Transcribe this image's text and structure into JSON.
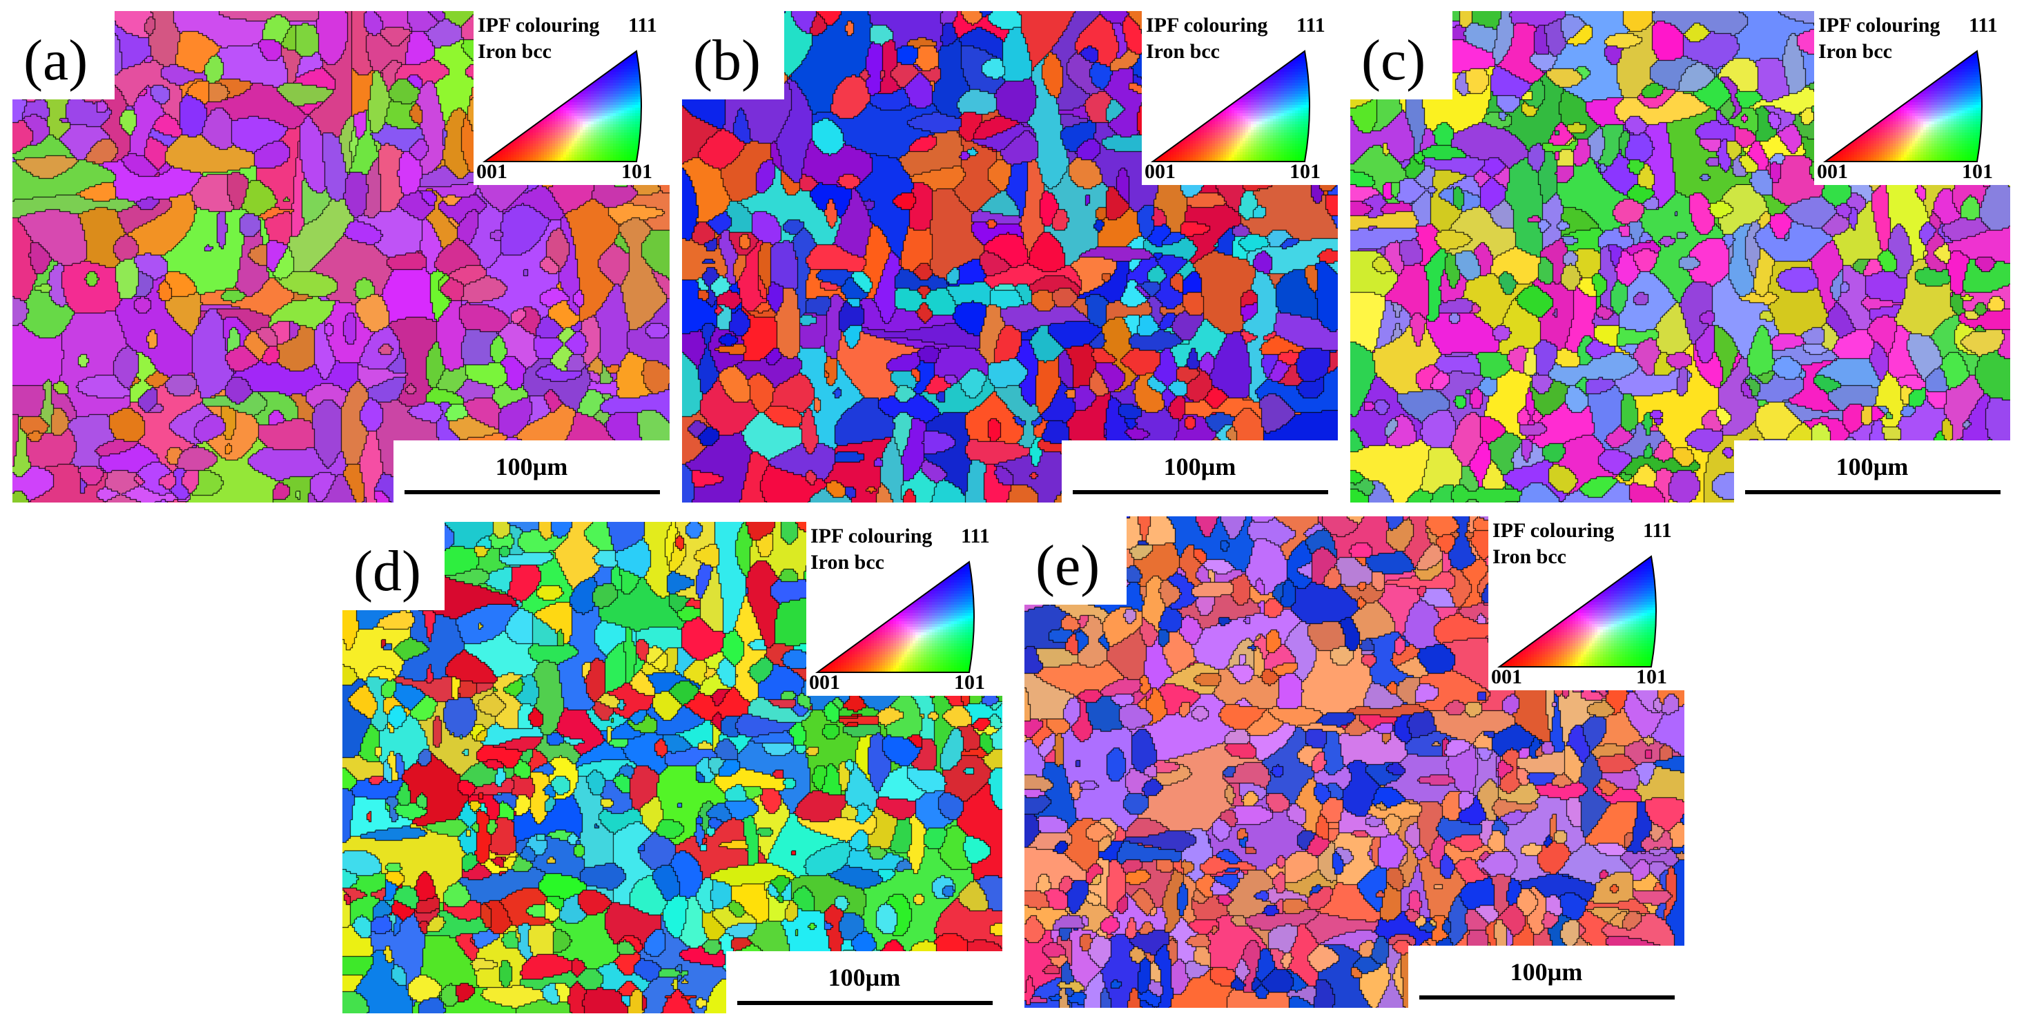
{
  "figure": {
    "panels": [
      {
        "label": "(a)",
        "legend_title_line1": "IPF colouring",
        "legend_title_line2": "Iron bcc",
        "legend_corner_top": "111",
        "legend_corner_left": "001",
        "legend_corner_right": "101",
        "scale_bar_text": "100µm",
        "dominant_colors": [
          "#a040e8",
          "#c040f0",
          "#e0409c",
          "#f08a30",
          "#80e040"
        ]
      },
      {
        "label": "(b)",
        "legend_title_line1": "IPF colouring",
        "legend_title_line2": "Iron bcc",
        "legend_corner_top": "111",
        "legend_corner_left": "001",
        "legend_corner_right": "101",
        "scale_bar_text": "100µm",
        "dominant_colors": [
          "#1830e8",
          "#f02040",
          "#f06828",
          "#8020e0",
          "#30d0e0"
        ]
      },
      {
        "label": "(c)",
        "legend_title_line1": "IPF colouring",
        "legend_title_line2": "Iron bcc",
        "legend_corner_top": "111",
        "legend_corner_left": "001",
        "legend_corner_right": "101",
        "scale_bar_text": "100µm",
        "dominant_colors": [
          "#f030c8",
          "#8090f0",
          "#40d040",
          "#e8e030",
          "#a040f0"
        ]
      },
      {
        "label": "(d)",
        "legend_title_line1": "IPF colouring",
        "legend_title_line2": "Iron bcc",
        "legend_corner_top": "111",
        "legend_corner_left": "001",
        "legend_corner_right": "101",
        "scale_bar_text": "100µm",
        "dominant_colors": [
          "#f02030",
          "#2070f0",
          "#40e040",
          "#f0e020",
          "#30e0e0"
        ]
      },
      {
        "label": "(e)",
        "legend_title_line1": "IPF colouring",
        "legend_title_line2": "Iron bcc",
        "legend_corner_top": "111",
        "legend_corner_left": "001",
        "legend_corner_right": "101",
        "scale_bar_text": "100µm",
        "dominant_colors": [
          "#f06840",
          "#2040e0",
          "#f04080",
          "#c070f0",
          "#f0a060"
        ]
      }
    ]
  }
}
